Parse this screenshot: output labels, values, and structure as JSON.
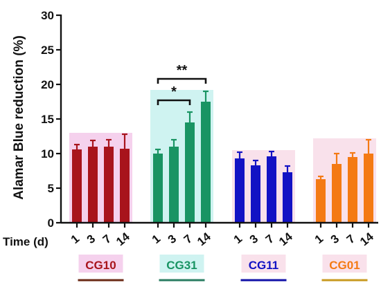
{
  "chart_data": {
    "type": "bar",
    "title": "",
    "ylabel": "Alamar Blue reduction (%)",
    "xlabel": "Time (d)",
    "ylim": [
      0,
      30
    ],
    "yticks": [
      0,
      5,
      10,
      15,
      20,
      25,
      30
    ],
    "time_labels": [
      "1",
      "3",
      "7",
      "14"
    ],
    "groups": [
      {
        "name": "CG10",
        "color": "#a8141c",
        "highlight": "#f3c9ea",
        "underline": "#6b2a16",
        "values": [
          10.6,
          11.0,
          11.0,
          10.7
        ],
        "errors": [
          0.7,
          0.9,
          1.0,
          2.1
        ]
      },
      {
        "name": "CG31",
        "color": "#199463",
        "highlight": "#c7f1ee",
        "underline": "#2a7d62",
        "values": [
          10.0,
          11.0,
          14.5,
          17.5
        ],
        "errors": [
          0.6,
          1.0,
          1.5,
          1.5
        ]
      },
      {
        "name": "CG11",
        "color": "#1212c4",
        "highlight": "#f8dce8",
        "underline": "#1212a8",
        "values": [
          9.3,
          8.3,
          9.6,
          7.3
        ],
        "errors": [
          0.9,
          0.7,
          0.7,
          0.9
        ]
      },
      {
        "name": "CG01",
        "color": "#f47a14",
        "highlight": "#f8dce8",
        "underline": "#c89a20",
        "values": [
          6.3,
          8.5,
          9.5,
          10.0
        ],
        "errors": [
          0.4,
          1.5,
          0.6,
          2.0
        ]
      }
    ],
    "significance": [
      {
        "label": "*",
        "group": 1,
        "from": 0,
        "to": 2
      },
      {
        "label": "**",
        "group": 1,
        "from": 0,
        "to": 3
      }
    ]
  }
}
